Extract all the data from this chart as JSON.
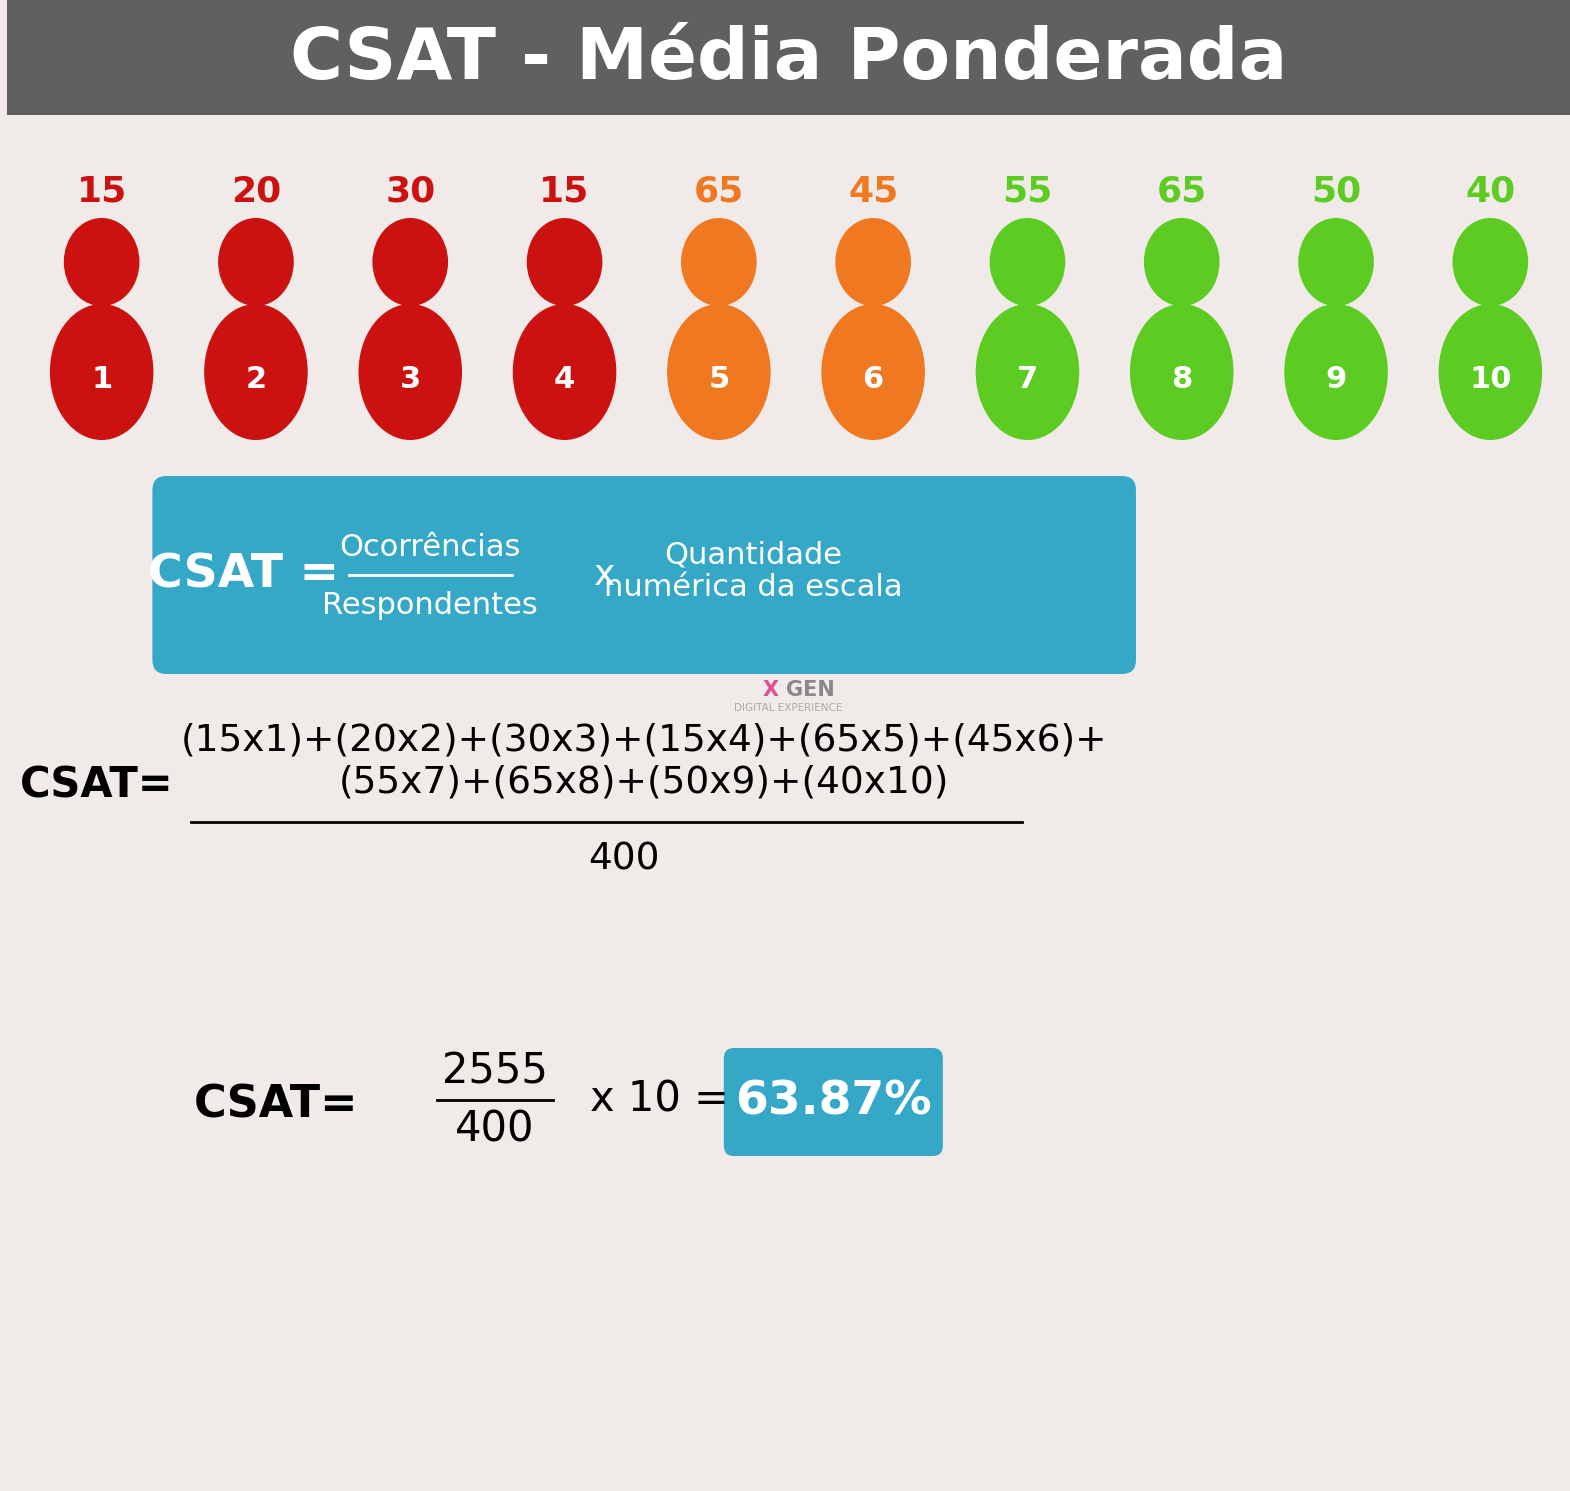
{
  "title": "CSAT - Média Ponderada",
  "title_bg": "#606060",
  "title_color": "#ffffff",
  "bg_color": "#f0ebe8",
  "persons": [
    {
      "n": 1,
      "val": 15,
      "color": "#cc1111",
      "val_color": "#cc1111"
    },
    {
      "n": 2,
      "val": 20,
      "color": "#cc1111",
      "val_color": "#cc1111"
    },
    {
      "n": 3,
      "val": 30,
      "color": "#cc1111",
      "val_color": "#cc1111"
    },
    {
      "n": 4,
      "val": 15,
      "color": "#cc1111",
      "val_color": "#cc1111"
    },
    {
      "n": 5,
      "val": 65,
      "color": "#f07820",
      "val_color": "#f07820"
    },
    {
      "n": 6,
      "val": 45,
      "color": "#f07820",
      "val_color": "#f07820"
    },
    {
      "n": 7,
      "val": 55,
      "color": "#5ccc22",
      "val_color": "#5ccc22"
    },
    {
      "n": 8,
      "val": 65,
      "color": "#5ccc22",
      "val_color": "#5ccc22"
    },
    {
      "n": 9,
      "val": 50,
      "color": "#5ccc22",
      "val_color": "#5ccc22"
    },
    {
      "n": 10,
      "val": 40,
      "color": "#5ccc22",
      "val_color": "#5ccc22"
    }
  ],
  "formula_bg": "#35a8c8",
  "formula_text_color": "#ffffff",
  "calc_line1": "(15x1)+(20x2)+(30x3)+(15x4)+(65x5)+(45x6)+",
  "calc_line2": "(55x7)+(65x8)+(50x9)+(40x10)",
  "calc_denom": "400",
  "result_num": "2555",
  "result_denom": "400",
  "result_mult": "x 10 =",
  "result_val": "63.87%",
  "result_bg": "#35a8c8",
  "xgen_x_color": "#e05090",
  "xgen_gen_color": "#888888",
  "xgen_sub_color": "#aaaaaa"
}
